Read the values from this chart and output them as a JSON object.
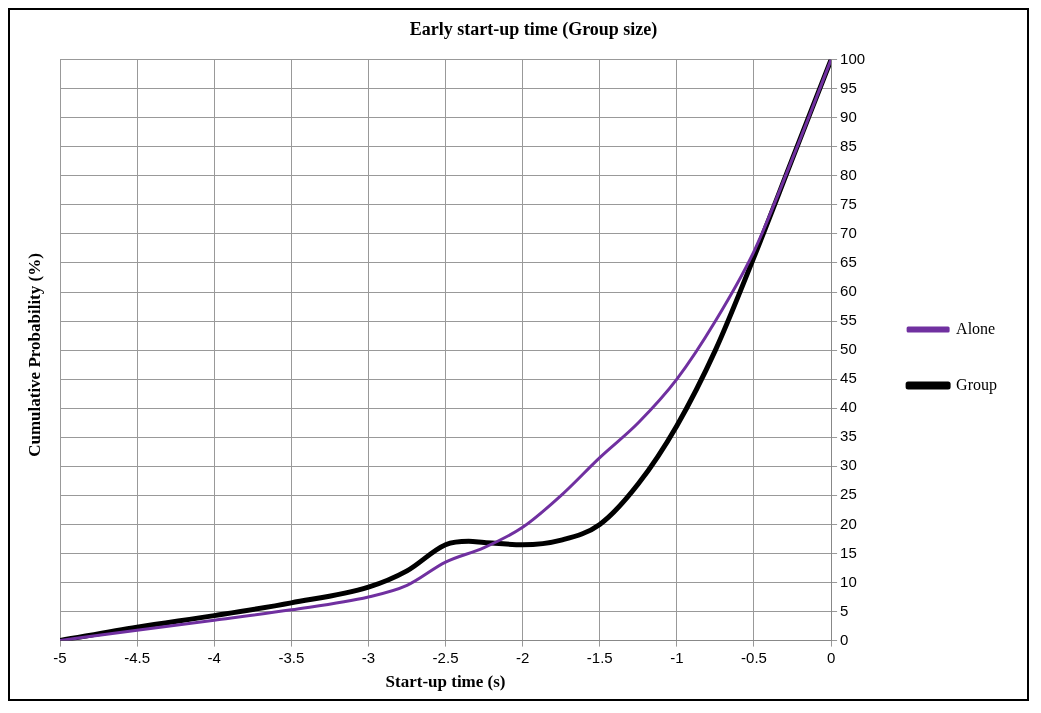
{
  "chart_data": {
    "type": "line",
    "title": "Early start-up time (Group size)",
    "xlabel": "Start-up time (s)",
    "ylabel": "Cumulative Probability (%)",
    "xlim": [
      -5,
      0
    ],
    "xticks": [
      -5,
      -4.5,
      -4,
      -3.5,
      -3,
      -2.5,
      -2,
      -1.5,
      -1,
      -0.5,
      0
    ],
    "ylim": [
      0,
      100
    ],
    "yticks": [
      0,
      5,
      10,
      15,
      20,
      25,
      30,
      35,
      40,
      45,
      50,
      55,
      60,
      65,
      70,
      75,
      80,
      85,
      90,
      95,
      100
    ],
    "grid": true,
    "legend": "right",
    "marker": "none",
    "line_style": "solid",
    "series": [
      {
        "name": "Alone",
        "color": "#7030a0",
        "x": [
          -5,
          -4.5,
          -4,
          -3.5,
          -3,
          -2.75,
          -2.5,
          -2.25,
          -2,
          -1.75,
          -1.5,
          -1.25,
          -1,
          -0.75,
          -0.5,
          -0.25,
          0
        ],
        "values": [
          0,
          1.8,
          3.5,
          5.3,
          7.5,
          9.5,
          13.5,
          16,
          19.5,
          25,
          31.5,
          37.5,
          45,
          55,
          67,
          83,
          100
        ]
      },
      {
        "name": "Group",
        "color": "#000000",
        "x": [
          -5,
          -4.5,
          -4,
          -3.5,
          -3,
          -2.75,
          -2.5,
          -2.35,
          -2.25,
          -2,
          -1.75,
          -1.5,
          -1.25,
          -1,
          -0.75,
          -0.5,
          -0.25,
          0
        ],
        "values": [
          0,
          2.3,
          4.3,
          6.5,
          9.2,
          12,
          16.5,
          17.1,
          16.9,
          16.5,
          17.3,
          20,
          27,
          37,
          50,
          66,
          83,
          100
        ]
      }
    ]
  }
}
